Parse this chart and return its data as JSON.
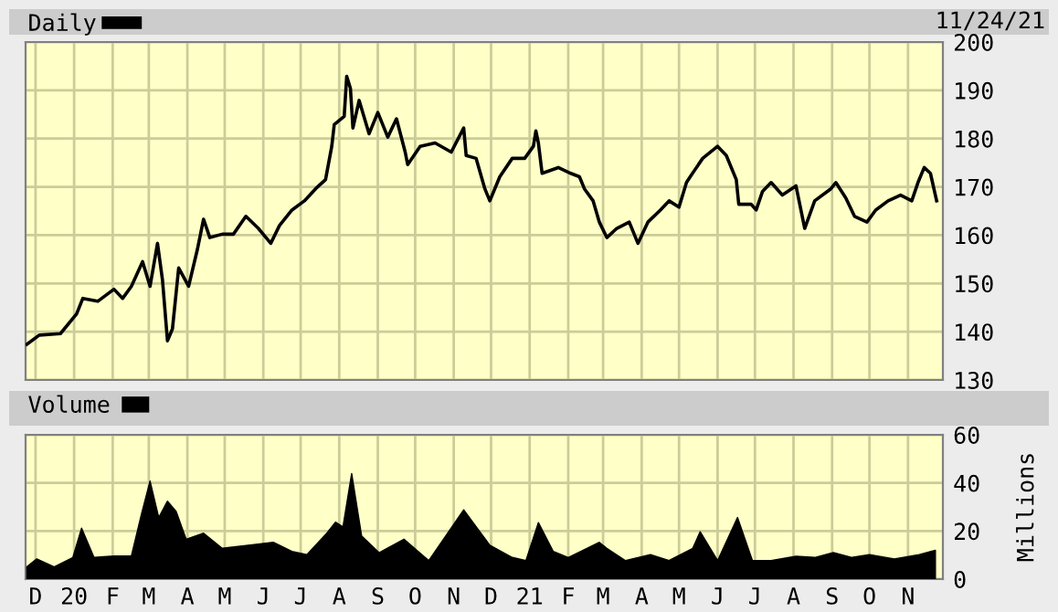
{
  "chart_data": [
    {
      "type": "line",
      "annotations": [
        "11/24/21"
      ],
      "legend": "top left",
      "grid": true,
      "tick_labels": "y",
      "xlim": [
        "2019-11-23",
        "2021-11-29"
      ],
      "xticks": [
        {
          "value": "2019-12-01",
          "label": null
        },
        {
          "value": "2020-01-01",
          "label": null
        },
        {
          "value": "2020-02-01",
          "label": null
        },
        {
          "value": "2020-03-01",
          "label": null
        },
        {
          "value": "2020-04-01",
          "label": null
        },
        {
          "value": "2020-05-01",
          "label": null
        },
        {
          "value": "2020-06-01",
          "label": null
        },
        {
          "value": "2020-07-01",
          "label": null
        },
        {
          "value": "2020-08-01",
          "label": null
        },
        {
          "value": "2020-09-01",
          "label": null
        },
        {
          "value": "2020-10-01",
          "label": null
        },
        {
          "value": "2020-11-01",
          "label": null
        },
        {
          "value": "2020-12-01",
          "label": null
        },
        {
          "value": "2021-01-01",
          "label": null
        },
        {
          "value": "2021-02-01",
          "label": null
        },
        {
          "value": "2021-03-01",
          "label": null
        },
        {
          "value": "2021-04-01",
          "label": null
        },
        {
          "value": "2021-05-01",
          "label": null
        },
        {
          "value": "2021-06-01",
          "label": null
        },
        {
          "value": "2021-07-01",
          "label": null
        },
        {
          "value": "2021-08-01",
          "label": null
        },
        {
          "value": "2021-09-01",
          "label": null
        },
        {
          "value": "2021-10-01",
          "label": null
        },
        {
          "value": "2021-11-01",
          "label": null
        }
      ],
      "ylim": [
        130,
        200
      ],
      "yticks": [
        130,
        140,
        150,
        160,
        170,
        180,
        190,
        200
      ],
      "series": [
        {
          "name": "Daily",
          "color": "#000000",
          "x": [
            "2019-11-24",
            "2019-12-04",
            "2019-12-21",
            "2020-01-03",
            "2020-01-08",
            "2020-01-20",
            "2020-02-02",
            "2020-02-09",
            "2020-02-16",
            "2020-02-25",
            "2020-03-02",
            "2020-03-08",
            "2020-03-12",
            "2020-03-16",
            "2020-03-20",
            "2020-03-25",
            "2020-04-02",
            "2020-04-09",
            "2020-04-14",
            "2020-04-19",
            "2020-04-29",
            "2020-05-08",
            "2020-05-18",
            "2020-05-28",
            "2020-06-07",
            "2020-06-14",
            "2020-06-24",
            "2020-07-04",
            "2020-07-13",
            "2020-07-21",
            "2020-07-26",
            "2020-07-28",
            "2020-08-05",
            "2020-08-07",
            "2020-08-10",
            "2020-08-12",
            "2020-08-17",
            "2020-08-25",
            "2020-09-01",
            "2020-09-09",
            "2020-09-16",
            "2020-09-23",
            "2020-09-25",
            "2020-10-05",
            "2020-10-17",
            "2020-10-30",
            "2020-11-09",
            "2020-11-11",
            "2020-11-19",
            "2020-11-26",
            "2020-11-30",
            "2020-12-08",
            "2020-12-18",
            "2020-12-28",
            "2021-01-04",
            "2021-01-06",
            "2021-01-08",
            "2021-01-11",
            "2021-01-24",
            "2021-02-03",
            "2021-02-10",
            "2021-02-14",
            "2021-02-21",
            "2021-02-26",
            "2021-03-04",
            "2021-03-12",
            "2021-03-22",
            "2021-03-29",
            "2021-04-06",
            "2021-04-16",
            "2021-04-23",
            "2021-05-01",
            "2021-05-07",
            "2021-05-10",
            "2021-05-20",
            "2021-06-01",
            "2021-06-08",
            "2021-06-16",
            "2021-06-18",
            "2021-06-28",
            "2021-07-02",
            "2021-07-07",
            "2021-07-14",
            "2021-07-23",
            "2021-08-03",
            "2021-08-08",
            "2021-08-10",
            "2021-08-18",
            "2021-08-31",
            "2021-09-04",
            "2021-09-12",
            "2021-09-19",
            "2021-09-29",
            "2021-10-06",
            "2021-10-16",
            "2021-10-26",
            "2021-11-04",
            "2021-11-09",
            "2021-11-14",
            "2021-11-19",
            "2021-11-24"
          ],
          "values": [
            137.4,
            139.3,
            139.6,
            143.7,
            146.9,
            146.3,
            148.8,
            146.9,
            149.4,
            154.5,
            149.4,
            158.3,
            150.7,
            138.1,
            140.6,
            153.2,
            149.4,
            157.0,
            163.3,
            159.5,
            160.2,
            160.2,
            163.9,
            161.4,
            158.3,
            162.0,
            165.2,
            167.1,
            169.6,
            171.5,
            178.4,
            182.9,
            184.6,
            192.9,
            190.4,
            182.2,
            187.9,
            181.0,
            185.4,
            180.3,
            184.1,
            177.2,
            174.6,
            178.4,
            179.1,
            177.2,
            182.2,
            176.5,
            175.9,
            169.6,
            167.1,
            172.1,
            175.9,
            175.9,
            178.4,
            181.6,
            179.1,
            172.8,
            174.0,
            172.8,
            172.1,
            169.6,
            167.1,
            162.7,
            159.5,
            161.4,
            162.7,
            158.3,
            162.7,
            165.2,
            167.1,
            165.8,
            170.9,
            172.1,
            175.9,
            178.4,
            176.5,
            171.5,
            166.4,
            166.4,
            165.2,
            169.0,
            170.9,
            168.3,
            170.2,
            163.9,
            161.4,
            167.1,
            169.6,
            170.9,
            167.7,
            163.9,
            162.7,
            165.2,
            167.1,
            168.3,
            167.1,
            170.9,
            174.0,
            172.8,
            167.1
          ]
        }
      ]
    },
    {
      "type": "area",
      "legend": "top left",
      "grid": true,
      "ylabel": "Millions",
      "xlim": [
        "2019-11-23",
        "2021-11-29"
      ],
      "xticks": [
        {
          "value": "2019-12-01",
          "label": "D"
        },
        {
          "value": "2020-01-01",
          "label": "20"
        },
        {
          "value": "2020-02-01",
          "label": "F"
        },
        {
          "value": "2020-03-01",
          "label": "M"
        },
        {
          "value": "2020-04-01",
          "label": "A"
        },
        {
          "value": "2020-05-01",
          "label": "M"
        },
        {
          "value": "2020-06-01",
          "label": "J"
        },
        {
          "value": "2020-07-01",
          "label": "J"
        },
        {
          "value": "2020-08-01",
          "label": "A"
        },
        {
          "value": "2020-09-01",
          "label": "S"
        },
        {
          "value": "2020-10-01",
          "label": "O"
        },
        {
          "value": "2020-11-01",
          "label": "N"
        },
        {
          "value": "2020-12-01",
          "label": "D"
        },
        {
          "value": "2021-01-01",
          "label": "21"
        },
        {
          "value": "2021-02-01",
          "label": "F"
        },
        {
          "value": "2021-03-01",
          "label": "M"
        },
        {
          "value": "2021-04-01",
          "label": "A"
        },
        {
          "value": "2021-05-01",
          "label": "M"
        },
        {
          "value": "2021-06-01",
          "label": "J"
        },
        {
          "value": "2021-07-01",
          "label": "J"
        },
        {
          "value": "2021-08-01",
          "label": "A"
        },
        {
          "value": "2021-09-01",
          "label": "S"
        },
        {
          "value": "2021-10-01",
          "label": "O"
        },
        {
          "value": "2021-11-01",
          "label": "N"
        }
      ],
      "ylim": [
        0,
        60
      ],
      "yticks": [
        0,
        20,
        40,
        60
      ],
      "series": [
        {
          "name": "Volume",
          "color": "#000000",
          "x": [
            "2019-11-24",
            "2019-12-02",
            "2019-12-16",
            "2019-12-31",
            "2020-01-07",
            "2020-01-17",
            "2020-02-02",
            "2020-02-16",
            "2020-02-24",
            "2020-03-02",
            "2020-03-09",
            "2020-03-16",
            "2020-03-23",
            "2020-03-31",
            "2020-04-14",
            "2020-04-29",
            "2020-05-20",
            "2020-06-09",
            "2020-06-24",
            "2020-07-06",
            "2020-07-22",
            "2020-07-29",
            "2020-08-04",
            "2020-08-11",
            "2020-08-19",
            "2020-09-02",
            "2020-09-22",
            "2020-10-12",
            "2020-11-09",
            "2020-11-30",
            "2020-12-18",
            "2020-12-29",
            "2021-01-08",
            "2021-01-20",
            "2021-02-01",
            "2021-02-16",
            "2021-02-26",
            "2021-03-04",
            "2021-03-19",
            "2021-04-08",
            "2021-04-23",
            "2021-05-12",
            "2021-05-18",
            "2021-06-01",
            "2021-06-17",
            "2021-06-29",
            "2021-07-14",
            "2021-08-03",
            "2021-08-18",
            "2021-09-02",
            "2021-09-17",
            "2021-10-01",
            "2021-10-21",
            "2021-11-10",
            "2021-11-23"
          ],
          "values": [
            5.1,
            8.4,
            5.1,
            9.0,
            21.2,
            9.0,
            9.6,
            9.6,
            26.8,
            40.8,
            25.6,
            32.4,
            28.1,
            16.6,
            19.1,
            12.8,
            14.1,
            15.3,
            11.5,
            10.2,
            19.1,
            23.7,
            21.7,
            43.9,
            17.9,
            11.0,
            16.6,
            7.7,
            28.8,
            14.1,
            9.0,
            7.7,
            23.5,
            11.5,
            9.0,
            12.8,
            15.3,
            12.8,
            7.7,
            10.2,
            7.7,
            12.8,
            19.7,
            7.7,
            25.6,
            7.7,
            7.7,
            9.5,
            9.0,
            11.0,
            9.0,
            10.2,
            8.4,
            10.2,
            12.0
          ]
        }
      ]
    }
  ]
}
